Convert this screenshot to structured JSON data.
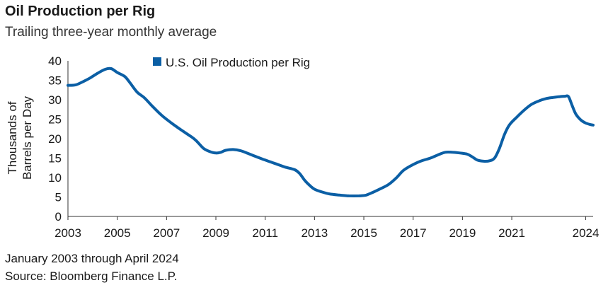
{
  "header": {
    "title": "Oil Production per Rig",
    "subtitle": "Trailing three-year monthly average"
  },
  "footer": {
    "date_range": "January 2003 through April 2024",
    "source": "Source: Bloomberg Finance L.P."
  },
  "chart_data": {
    "type": "line",
    "ylabel_line1": "Thousands of",
    "ylabel_line2": "Barrels per Day",
    "ylim": [
      0,
      40
    ],
    "yticks": [
      0,
      5,
      10,
      15,
      20,
      25,
      30,
      35,
      40
    ],
    "xlim": [
      2003,
      2024.3
    ],
    "xticks": [
      2003,
      2005,
      2007,
      2009,
      2011,
      2013,
      2015,
      2017,
      2019,
      2021,
      2024
    ],
    "xtick_labels": [
      "2003",
      "2005",
      "2007",
      "2009",
      "2011",
      "2013",
      "2015",
      "2017",
      "2019",
      "2021",
      "2024"
    ],
    "grid": false,
    "legend_position": "top-center",
    "series": [
      {
        "name": "U.S. Oil Production per Rig",
        "color": "#0b5fa5",
        "points": [
          [
            2003.0,
            33.7
          ],
          [
            2003.3,
            33.8
          ],
          [
            2003.6,
            34.6
          ],
          [
            2003.9,
            35.6
          ],
          [
            2004.2,
            36.8
          ],
          [
            2004.5,
            37.8
          ],
          [
            2004.75,
            38.0
          ],
          [
            2005.0,
            37.0
          ],
          [
            2005.3,
            36.0
          ],
          [
            2005.5,
            34.5
          ],
          [
            2005.8,
            32.0
          ],
          [
            2006.1,
            30.5
          ],
          [
            2006.4,
            28.5
          ],
          [
            2006.8,
            26.0
          ],
          [
            2007.2,
            24.0
          ],
          [
            2007.6,
            22.2
          ],
          [
            2008.0,
            20.5
          ],
          [
            2008.2,
            19.5
          ],
          [
            2008.5,
            17.5
          ],
          [
            2008.75,
            16.7
          ],
          [
            2009.0,
            16.3
          ],
          [
            2009.2,
            16.5
          ],
          [
            2009.4,
            17.0
          ],
          [
            2009.7,
            17.2
          ],
          [
            2010.0,
            16.9
          ],
          [
            2010.3,
            16.2
          ],
          [
            2010.7,
            15.2
          ],
          [
            2011.0,
            14.5
          ],
          [
            2011.4,
            13.6
          ],
          [
            2011.8,
            12.7
          ],
          [
            2012.2,
            12.0
          ],
          [
            2012.4,
            11.0
          ],
          [
            2012.6,
            9.3
          ],
          [
            2012.8,
            8.0
          ],
          [
            2013.0,
            7.0
          ],
          [
            2013.3,
            6.3
          ],
          [
            2013.6,
            5.8
          ],
          [
            2014.0,
            5.5
          ],
          [
            2014.4,
            5.3
          ],
          [
            2014.8,
            5.3
          ],
          [
            2015.1,
            5.5
          ],
          [
            2015.4,
            6.3
          ],
          [
            2015.7,
            7.2
          ],
          [
            2016.0,
            8.2
          ],
          [
            2016.3,
            9.8
          ],
          [
            2016.6,
            11.8
          ],
          [
            2016.9,
            13.0
          ],
          [
            2017.3,
            14.2
          ],
          [
            2017.7,
            15.0
          ],
          [
            2018.0,
            15.8
          ],
          [
            2018.3,
            16.5
          ],
          [
            2018.6,
            16.5
          ],
          [
            2018.9,
            16.3
          ],
          [
            2019.2,
            16.0
          ],
          [
            2019.4,
            15.3
          ],
          [
            2019.6,
            14.5
          ],
          [
            2019.85,
            14.2
          ],
          [
            2020.1,
            14.3
          ],
          [
            2020.3,
            15.0
          ],
          [
            2020.5,
            17.5
          ],
          [
            2020.7,
            21.0
          ],
          [
            2020.9,
            23.5
          ],
          [
            2021.2,
            25.5
          ],
          [
            2021.5,
            27.3
          ],
          [
            2021.8,
            28.8
          ],
          [
            2022.1,
            29.7
          ],
          [
            2022.4,
            30.3
          ],
          [
            2022.7,
            30.6
          ],
          [
            2022.95,
            30.8
          ],
          [
            2023.15,
            30.9
          ],
          [
            2023.3,
            30.8
          ],
          [
            2023.45,
            28.5
          ],
          [
            2023.6,
            26.3
          ],
          [
            2023.8,
            24.8
          ],
          [
            2024.0,
            24.0
          ],
          [
            2024.2,
            23.6
          ],
          [
            2024.3,
            23.5
          ]
        ]
      }
    ]
  }
}
